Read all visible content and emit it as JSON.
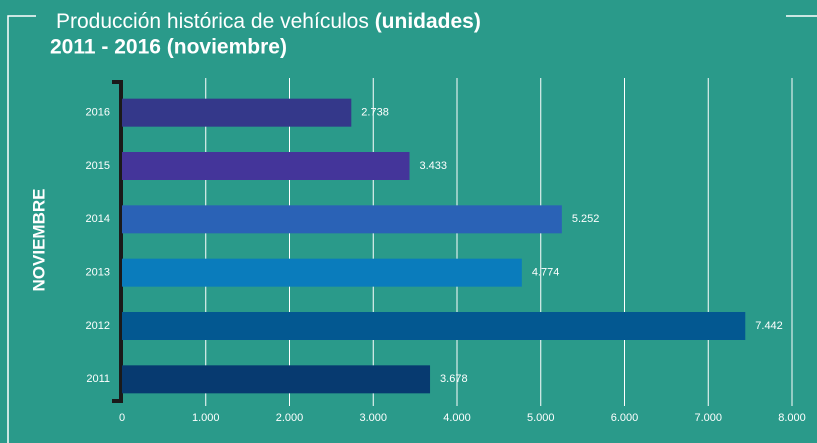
{
  "chart_data": {
    "type": "bar",
    "orientation": "horizontal",
    "title": "Producción histórica de vehículos",
    "title_emphasis": "(unidades)",
    "subtitle": "2011 - 2016 (noviembre)",
    "y_label": "NOVIEMBRE",
    "categories": [
      "2016",
      "2015",
      "2014",
      "2013",
      "2012",
      "2011"
    ],
    "values": [
      2738,
      3433,
      5252,
      4774,
      7442,
      3678
    ],
    "value_labels": [
      "2.738",
      "3.433",
      "5.252",
      "4.774",
      "7.442",
      "3.678"
    ],
    "colors": [
      "#34388a",
      "#44359a",
      "#2a62b6",
      "#0a7cbc",
      "#035891",
      "#073a70"
    ],
    "xlim": [
      0,
      8000
    ],
    "xticks": [
      0,
      {
        "value": 1000,
        "label": "1.000"
      },
      {
        "value": 2000,
        "label": "2.000"
      },
      {
        "value": 3000,
        "label": "3.000"
      },
      {
        "value": 4000,
        "label": "4.000"
      },
      {
        "value": 5000,
        "label": "5.000"
      },
      {
        "value": 6000,
        "label": "6.000"
      },
      {
        "value": 7000,
        "label": "7.000"
      },
      {
        "value": 8000,
        "label": "8.000"
      }
    ],
    "grid": true
  }
}
